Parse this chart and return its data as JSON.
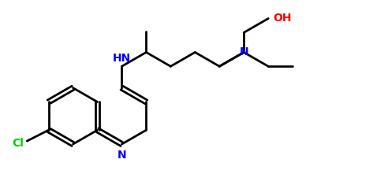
{
  "background_color": "#ffffff",
  "line_color": "#000000",
  "N_color": "#0000ff",
  "Cl_color": "#00cc00",
  "OH_color": "#ff0000",
  "linewidth": 2.0,
  "figsize": [
    4.73,
    2.4
  ],
  "dpi": 100,
  "xlim": [
    0,
    9.5
  ],
  "ylim": [
    0,
    4.8
  ]
}
